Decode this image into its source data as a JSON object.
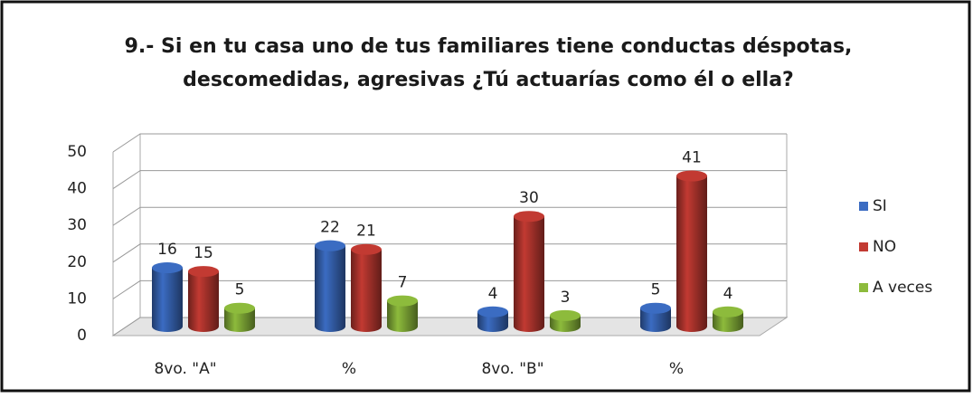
{
  "chart_data": {
    "type": "bar3d",
    "title": "9.- Si en tu casa uno de tus familiares tiene conductas déspotas,",
    "subtitle": "descomedidas, agresivas ¿Tú actuarías como él o ella?",
    "categories": [
      "8vo. \"A\"",
      "%",
      "8vo. \"B\"",
      "%"
    ],
    "series": [
      {
        "name": "SI",
        "color": "#3b6cc2",
        "values": [
          16,
          22,
          4,
          5
        ]
      },
      {
        "name": "NO",
        "color": "#c23a32",
        "values": [
          15,
          21,
          30,
          41
        ]
      },
      {
        "name": "A veces",
        "color": "#8dbb3c",
        "values": [
          5,
          7,
          3,
          4
        ]
      }
    ],
    "ylim": [
      0,
      50
    ],
    "yticks": [
      0,
      10,
      20,
      30,
      40,
      50
    ],
    "grid": true,
    "legend": "right"
  }
}
